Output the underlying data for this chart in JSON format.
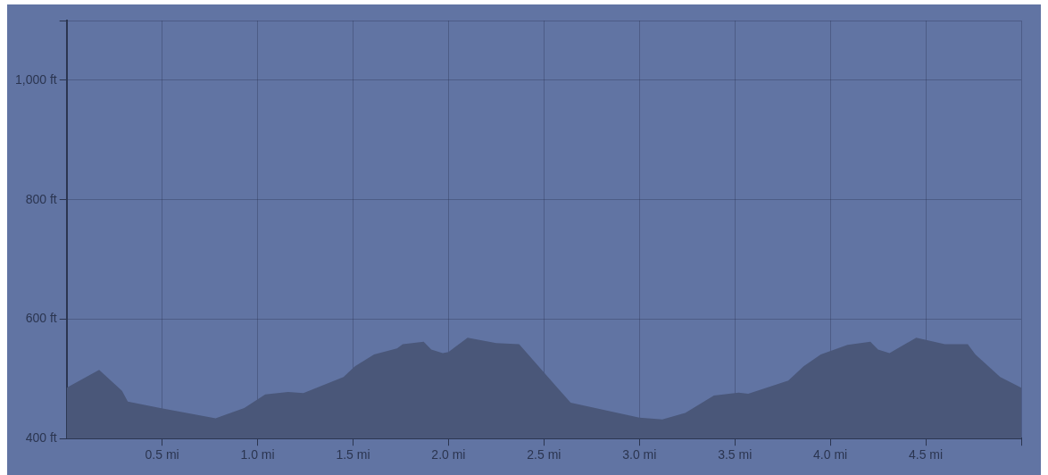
{
  "chart_data": {
    "type": "area",
    "x": [
      0,
      0.17,
      0.29,
      0.32,
      0.49,
      0.78,
      0.93,
      1.04,
      1.16,
      1.24,
      1.45,
      1.51,
      1.61,
      1.73,
      1.76,
      1.87,
      1.91,
      1.97,
      2.0,
      2.1,
      2.25,
      2.37,
      2.48,
      2.56,
      2.64,
      3.0,
      3.12,
      3.24,
      3.39,
      3.52,
      3.57,
      3.78,
      3.86,
      3.95,
      4.09,
      4.21,
      4.25,
      4.31,
      4.45,
      4.6,
      4.72,
      4.76,
      4.89,
      5.0
    ],
    "series": [
      {
        "color": "#4a5779",
        "values": [
          485,
          515,
          480,
          462,
          451,
          434,
          451,
          474,
          478,
          476,
          503,
          521,
          541,
          551,
          558,
          562,
          549,
          543,
          545,
          569,
          560,
          558,
          518,
          489,
          460,
          435,
          432,
          443,
          472,
          477,
          475,
          497,
          521,
          541,
          557,
          562,
          549,
          543,
          569,
          558,
          558,
          541,
          503,
          485
        ]
      }
    ],
    "xlim": [
      0,
      5
    ],
    "ylim": [
      400,
      1100
    ],
    "xticks": [
      {
        "value": 0.5,
        "label": "0.5 mi"
      },
      {
        "value": 1,
        "label": "1.0 mi"
      },
      {
        "value": 1.5,
        "label": "1.5 mi"
      },
      {
        "value": 2,
        "label": "2.0 mi"
      },
      {
        "value": 2.5,
        "label": "2.5 mi"
      },
      {
        "value": 3,
        "label": "3.0 mi"
      },
      {
        "value": 3.5,
        "label": "3.5 mi"
      },
      {
        "value": 4,
        "label": "4.0 mi"
      },
      {
        "value": 4.5,
        "label": "4.5 mi"
      },
      {
        "value": 5,
        "label": null
      }
    ],
    "yticks": [
      {
        "value": 400,
        "label": "400 ft"
      },
      {
        "value": 600,
        "label": "600 ft"
      },
      {
        "value": 800,
        "label": "800 ft"
      },
      {
        "value": 1000,
        "label": "1,000 ft"
      },
      {
        "value": 1100,
        "label": null
      }
    ],
    "grid": true,
    "legend": false,
    "marker": "none"
  }
}
